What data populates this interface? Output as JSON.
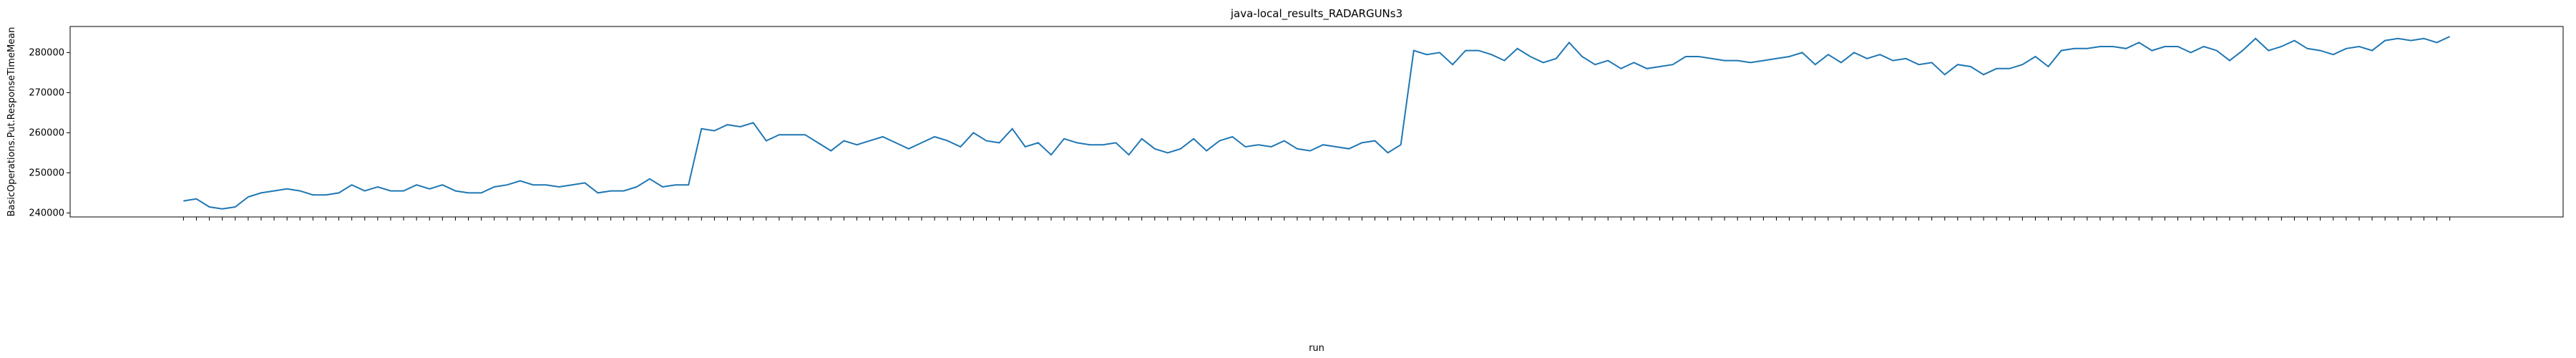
{
  "chart_data": {
    "type": "line",
    "title": "java-local_results_RADARGUNs3",
    "x_label": "run",
    "y_label": "BasicOperations.Put.ResponseTimeMean",
    "categories": [
      null,
      null,
      null,
      null,
      null,
      null,
      null,
      null,
      null,
      null,
      null,
      null,
      null,
      null,
      null,
      null,
      null,
      null,
      null,
      null,
      null,
      null,
      null,
      null,
      null,
      null,
      null,
      null,
      null,
      null,
      null,
      null,
      null,
      null,
      null,
      null,
      null,
      null,
      null,
      null,
      null,
      null,
      null,
      null,
      null,
      null,
      null,
      null,
      null,
      null,
      null,
      null,
      null,
      null,
      null,
      null,
      null,
      null,
      null,
      null,
      null,
      null,
      null,
      null,
      null,
      null,
      null,
      null,
      null,
      null,
      null,
      null,
      null,
      null,
      null,
      null,
      null,
      null,
      null,
      null,
      null,
      null,
      null,
      null,
      null,
      null,
      null,
      null,
      null,
      null,
      null,
      null,
      null,
      null,
      null,
      null,
      null,
      null,
      null,
      null,
      null,
      null,
      null,
      null,
      null,
      null,
      null,
      null,
      null,
      null,
      null,
      null,
      null,
      null,
      null,
      null,
      null,
      null,
      null,
      null,
      null,
      null,
      null,
      null,
      null,
      null,
      null,
      null,
      null,
      null,
      null,
      null,
      null,
      null,
      null,
      null,
      null,
      null,
      null,
      null,
      null,
      null,
      null,
      null,
      null,
      null,
      null,
      null,
      null,
      null,
      null,
      null,
      null,
      null,
      null,
      null,
      null,
      null,
      null,
      null,
      null,
      null,
      null,
      null,
      null,
      null,
      null,
      null,
      null,
      null,
      null,
      null,
      null,
      null,
      null,
      null
    ],
    "series": [
      {
        "name": "BasicOperations.Put.ResponseTimeMean",
        "color": "#1f77b4",
        "values": [
          243000,
          243500,
          241500,
          241000,
          241500,
          244000,
          245000,
          245500,
          246000,
          245500,
          244500,
          244500,
          245000,
          247000,
          245500,
          246500,
          245500,
          245500,
          247000,
          246000,
          247000,
          245500,
          245000,
          245000,
          246500,
          247000,
          248000,
          247000,
          247000,
          246500,
          247000,
          247500,
          245000,
          245500,
          245500,
          246500,
          248500,
          246500,
          247000,
          247000,
          261000,
          260500,
          262000,
          261500,
          262500,
          258000,
          259500,
          259500,
          259500,
          257500,
          255500,
          258000,
          257000,
          258000,
          259000,
          257500,
          256000,
          257500,
          259000,
          258000,
          256500,
          260000,
          258000,
          257500,
          261000,
          256500,
          257500,
          254500,
          258500,
          257500,
          257000,
          257000,
          257500,
          254500,
          258500,
          256000,
          255000,
          256000,
          258500,
          255500,
          258000,
          259000,
          256500,
          257000,
          256500,
          258000,
          256000,
          255500,
          257000,
          256500,
          256000,
          257500,
          258000,
          255000,
          257000,
          280500,
          279500,
          280000,
          277000,
          280500,
          280500,
          279500,
          278000,
          281000,
          279000,
          277500,
          278500,
          282500,
          279000,
          277000,
          278000,
          276000,
          277500,
          276000,
          276500,
          277000,
          279000,
          279000,
          278500,
          278000,
          278000,
          277500,
          278000,
          278500,
          279000,
          280000,
          277000,
          279500,
          277500,
          280000,
          278500,
          279500,
          278000,
          278500,
          277000,
          277500,
          274500,
          277000,
          276500,
          274500,
          276000,
          276000,
          277000,
          279000,
          276500,
          280500,
          281000,
          281000,
          281500,
          281500,
          281000,
          282500,
          280500,
          281500,
          281500,
          280000,
          281500,
          280500,
          278000,
          280500,
          283500,
          280500,
          281500,
          283000,
          281000,
          280500,
          279500,
          281000,
          281500,
          280500,
          283000,
          283500,
          283000,
          283500,
          282500,
          284000
        ]
      }
    ],
    "ylim": [
      239000,
      286500
    ],
    "yticks": [
      240000,
      250000,
      260000,
      270000,
      280000
    ],
    "grid": false
  }
}
